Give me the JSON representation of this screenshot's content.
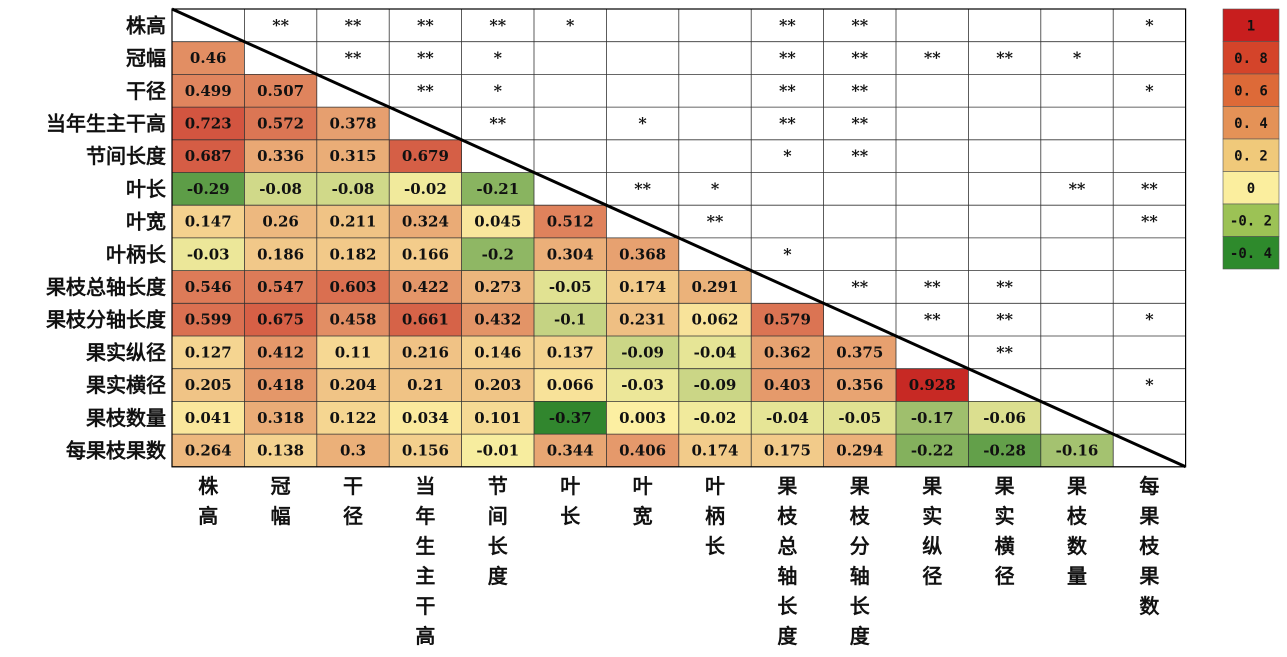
{
  "chart_data": {
    "type": "heatmap",
    "variables": [
      "株高",
      "冠幅",
      "干径",
      "当年生主干高",
      "节间长度",
      "叶长",
      "叶宽",
      "叶柄长",
      "果枝总轴长度",
      "果枝分轴长度",
      "果实纵径",
      "果实横径",
      "果枝数量",
      "每果枝果数"
    ],
    "lower_values": [
      [],
      [
        "0.46"
      ],
      [
        "0.499",
        "0.507"
      ],
      [
        "0.723",
        "0.572",
        "0.378"
      ],
      [
        "0.687",
        "0.336",
        "0.315",
        "0.679"
      ],
      [
        "-0.29",
        "-0.08",
        "-0.08",
        "-0.02",
        "-0.21"
      ],
      [
        "0.147",
        "0.26",
        "0.211",
        "0.324",
        "0.045",
        "0.512"
      ],
      [
        "-0.03",
        "0.186",
        "0.182",
        "0.166",
        "-0.2",
        "0.304",
        "0.368"
      ],
      [
        "0.546",
        "0.547",
        "0.603",
        "0.422",
        "0.273",
        "-0.05",
        "0.174",
        "0.291"
      ],
      [
        "0.599",
        "0.675",
        "0.458",
        "0.661",
        "0.432",
        "-0.1",
        "0.231",
        "0.062",
        "0.579"
      ],
      [
        "0.127",
        "0.412",
        "0.11",
        "0.216",
        "0.146",
        "0.137",
        "-0.09",
        "-0.04",
        "0.362",
        "0.375"
      ],
      [
        "0.205",
        "0.418",
        "0.204",
        "0.21",
        "0.203",
        "0.066",
        "-0.03",
        "-0.09",
        "0.403",
        "0.356",
        "0.928"
      ],
      [
        "0.041",
        "0.318",
        "0.122",
        "0.034",
        "0.101",
        "-0.37",
        "0.003",
        "-0.02",
        "-0.04",
        "-0.05",
        "-0.17",
        "-0.06"
      ],
      [
        "0.264",
        "0.138",
        "0.3",
        "0.156",
        "-0.01",
        "0.344",
        "0.406",
        "0.174",
        "0.175",
        "0.294",
        "-0.22",
        "-0.28",
        "-0.16"
      ]
    ],
    "significance": [
      [
        0,
        1,
        "**"
      ],
      [
        0,
        2,
        "**"
      ],
      [
        0,
        3,
        "**"
      ],
      [
        0,
        4,
        "**"
      ],
      [
        0,
        5,
        "*"
      ],
      [
        0,
        8,
        "**"
      ],
      [
        0,
        9,
        "**"
      ],
      [
        0,
        13,
        "*"
      ],
      [
        1,
        2,
        "**"
      ],
      [
        1,
        3,
        "**"
      ],
      [
        1,
        4,
        "*"
      ],
      [
        1,
        8,
        "**"
      ],
      [
        1,
        9,
        "**"
      ],
      [
        1,
        10,
        "**"
      ],
      [
        1,
        11,
        "**"
      ],
      [
        1,
        12,
        "*"
      ],
      [
        2,
        3,
        "**"
      ],
      [
        2,
        4,
        "*"
      ],
      [
        2,
        8,
        "**"
      ],
      [
        2,
        9,
        "**"
      ],
      [
        2,
        13,
        "*"
      ],
      [
        3,
        4,
        "**"
      ],
      [
        3,
        6,
        "*"
      ],
      [
        3,
        8,
        "**"
      ],
      [
        3,
        9,
        "**"
      ],
      [
        4,
        8,
        "*"
      ],
      [
        4,
        9,
        "**"
      ],
      [
        5,
        6,
        "**"
      ],
      [
        5,
        7,
        "*"
      ],
      [
        5,
        12,
        "**"
      ],
      [
        5,
        13,
        "**"
      ],
      [
        6,
        7,
        "**"
      ],
      [
        6,
        13,
        "**"
      ],
      [
        7,
        8,
        "*"
      ],
      [
        8,
        9,
        "**"
      ],
      [
        8,
        10,
        "**"
      ],
      [
        8,
        11,
        "**"
      ],
      [
        9,
        10,
        "**"
      ],
      [
        9,
        11,
        "**"
      ],
      [
        9,
        13,
        "*"
      ],
      [
        10,
        11,
        "**"
      ],
      [
        11,
        13,
        "*"
      ]
    ],
    "legend_labels": [
      "1",
      "0. 8",
      "0. 6",
      "0. 4",
      "0. 2",
      "0",
      "-0. 2",
      "-0. 4"
    ],
    "legend_colors": [
      "#c81e1e",
      "#d4442a",
      "#dd6a38",
      "#e49257",
      "#f0c97a",
      "#fbee9e",
      "#9cc255",
      "#2e8a2c"
    ],
    "value_range": [
      -0.4,
      1
    ],
    "color_scale": {
      "low": "#217d25",
      "mid": "#fcf0a2",
      "high": "#c31a1a"
    }
  }
}
